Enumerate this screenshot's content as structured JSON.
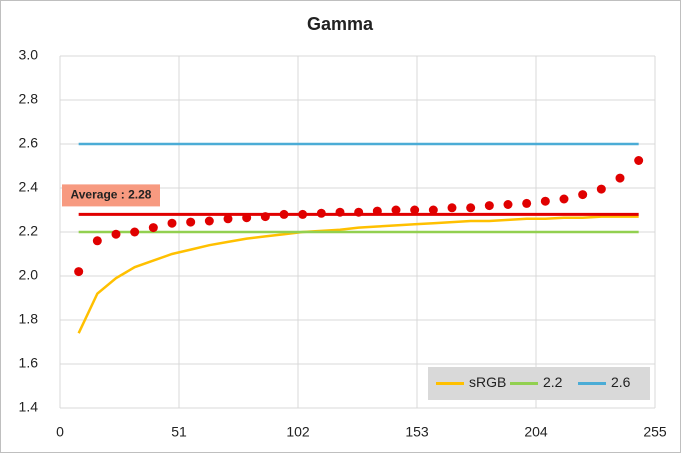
{
  "chart_data": {
    "type": "line",
    "title": "Gamma",
    "x": [
      8,
      16,
      24,
      32,
      40,
      48,
      56,
      64,
      72,
      80,
      88,
      96,
      104,
      112,
      120,
      128,
      136,
      144,
      152,
      160,
      168,
      176,
      184,
      192,
      200,
      208,
      216,
      224,
      232,
      240,
      248
    ],
    "series": [
      {
        "name": "sRGB",
        "color": "#ffc000",
        "values": [
          1.74,
          1.92,
          1.99,
          2.04,
          2.07,
          2.1,
          2.12,
          2.14,
          2.155,
          2.17,
          2.18,
          2.19,
          2.2,
          2.205,
          2.21,
          2.22,
          2.225,
          2.23,
          2.235,
          2.24,
          2.245,
          2.25,
          2.25,
          2.255,
          2.26,
          2.26,
          2.265,
          2.265,
          2.27,
          2.27,
          2.27
        ]
      },
      {
        "name": "2.2",
        "color": "#92d050",
        "values": [
          2.2,
          2.2,
          2.2,
          2.2,
          2.2,
          2.2,
          2.2,
          2.2,
          2.2,
          2.2,
          2.2,
          2.2,
          2.2,
          2.2,
          2.2,
          2.2,
          2.2,
          2.2,
          2.2,
          2.2,
          2.2,
          2.2,
          2.2,
          2.2,
          2.2,
          2.2,
          2.2,
          2.2,
          2.2,
          2.2,
          2.2
        ]
      },
      {
        "name": "2.6",
        "color": "#4bacd6",
        "values": [
          2.6,
          2.6,
          2.6,
          2.6,
          2.6,
          2.6,
          2.6,
          2.6,
          2.6,
          2.6,
          2.6,
          2.6,
          2.6,
          2.6,
          2.6,
          2.6,
          2.6,
          2.6,
          2.6,
          2.6,
          2.6,
          2.6,
          2.6,
          2.6,
          2.6,
          2.6,
          2.6,
          2.6,
          2.6,
          2.6,
          2.6
        ]
      }
    ],
    "points": {
      "color": "#e00000",
      "values": [
        2.02,
        2.16,
        2.19,
        2.2,
        2.22,
        2.24,
        2.245,
        2.25,
        2.26,
        2.265,
        2.27,
        2.28,
        2.28,
        2.285,
        2.29,
        2.29,
        2.295,
        2.3,
        2.3,
        2.3,
        2.31,
        2.31,
        2.32,
        2.325,
        2.33,
        2.34,
        2.35,
        2.37,
        2.395,
        2.445,
        2.525
      ]
    },
    "average": {
      "value": 2.28,
      "label": "Average : 2.28",
      "color": "#e00000"
    },
    "xlim": [
      0,
      255
    ],
    "xticks": [
      0,
      51,
      102,
      153,
      204,
      255
    ],
    "ylim": [
      1.4,
      3.0
    ],
    "yticks": [
      1.4,
      1.6,
      1.8,
      {
        "value": 2,
        "label": "2.0"
      },
      2.2,
      2.4,
      2.6,
      2.8,
      {
        "value": 3,
        "label": "3.0"
      }
    ],
    "grid": true,
    "legend": "bottom-right"
  }
}
